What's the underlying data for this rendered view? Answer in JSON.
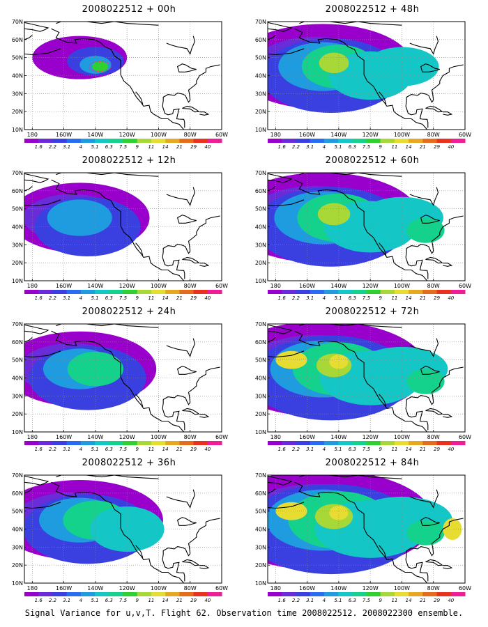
{
  "panels": [
    {
      "title": "2008022512 + 00h",
      "lead": 0
    },
    {
      "title": "2008022512 + 48h",
      "lead": 48
    },
    {
      "title": "2008022512 + 12h",
      "lead": 12
    },
    {
      "title": "2008022512 + 60h",
      "lead": 60
    },
    {
      "title": "2008022512 + 24h",
      "lead": 24
    },
    {
      "title": "2008022512 + 72h",
      "lead": 72
    },
    {
      "title": "2008022512 + 36h",
      "lead": 36
    },
    {
      "title": "2008022512 + 84h",
      "lead": 84
    }
  ],
  "lat_labels": [
    "70N",
    "60N",
    "50N",
    "40N",
    "30N",
    "20N",
    "10N"
  ],
  "lon_labels": [
    "180",
    "160W",
    "140W",
    "120W",
    "100W",
    "80W",
    "60W"
  ],
  "colorbar": {
    "labels": [
      "1.6",
      "2.2",
      "3.1",
      "4",
      "5.1",
      "6.3",
      "7.5",
      "9",
      "11",
      "14",
      "21",
      "29",
      "40"
    ],
    "colors": [
      "#9900cc",
      "#6a2bd9",
      "#3a40e0",
      "#2a6cf0",
      "#1f9be0",
      "#14c6c6",
      "#14d28c",
      "#2ed22e",
      "#a8d838",
      "#e6dc32",
      "#e6a824",
      "#e66c1c",
      "#e6321e",
      "#f01e96"
    ]
  },
  "caption": "Signal Variance for u,v,T. Flight 62. Observation time 2008022512. 2008022300 ensemble."
}
